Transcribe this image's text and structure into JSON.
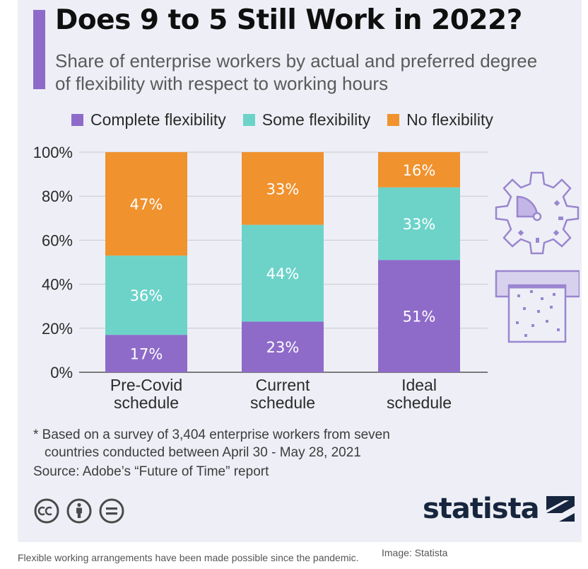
{
  "title": "Does 9 to 5 Still Work in 2022?",
  "subtitle": "Share of enterprise workers by actual and preferred degree of flexibility with respect to working hours",
  "legend": [
    {
      "label": "Complete flexibility",
      "color": "#8e6bc9"
    },
    {
      "label": "Some flexibility",
      "color": "#6dd3c9"
    },
    {
      "label": "No flexibility",
      "color": "#f0922e"
    }
  ],
  "chart_data": {
    "type": "bar",
    "stacked": true,
    "categories": [
      [
        "Pre-Covid",
        "schedule"
      ],
      [
        "Current",
        "schedule"
      ],
      [
        "Ideal",
        "schedule"
      ]
    ],
    "series": [
      {
        "name": "Complete flexibility",
        "color": "#8e6bc9",
        "values": [
          17,
          23,
          51
        ],
        "labels": [
          "17%",
          "23%",
          "51%"
        ]
      },
      {
        "name": "Some flexibility",
        "color": "#6dd3c9",
        "values": [
          36,
          44,
          33
        ],
        "labels": [
          "36%",
          "44%",
          "33%"
        ]
      },
      {
        "name": "No flexibility",
        "color": "#f0922e",
        "values": [
          47,
          33,
          16
        ],
        "labels": [
          "47%",
          "33%",
          "16%"
        ]
      }
    ],
    "ylim": [
      0,
      100
    ],
    "yticks": [
      0,
      20,
      40,
      60,
      80,
      100
    ],
    "ytick_labels": [
      "0%",
      "20%",
      "40%",
      "60%",
      "80%",
      "100%"
    ],
    "grid": true,
    "legend_position": "top"
  },
  "footnote": {
    "line1": "* Based on a survey of 3,404 enterprise workers from seven",
    "line2": "countries conducted between April 30 - May 28, 2021"
  },
  "source": "Source: Adobe’s “Future of Time” report",
  "license_icons": [
    "creative-commons-icon",
    "attribution-icon",
    "no-derivatives-icon"
  ],
  "brand": "statista",
  "caption": "Flexible working arrangements have been made possible since the pandemic.",
  "credit": "Image: Statista"
}
